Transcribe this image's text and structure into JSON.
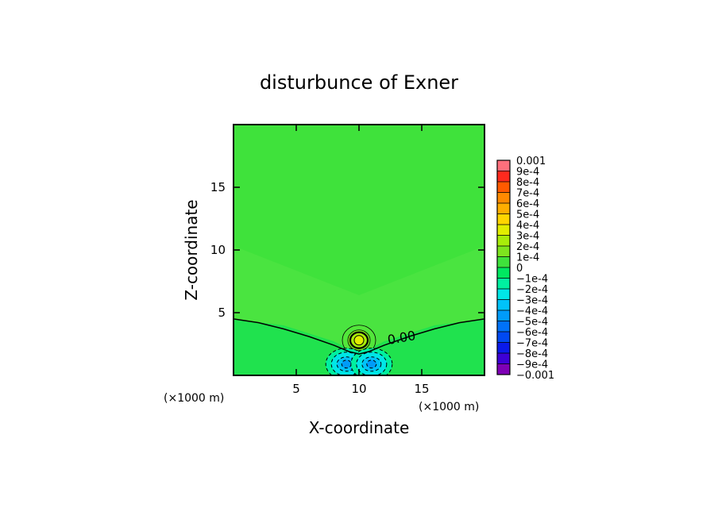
{
  "chart_data": {
    "type": "heatmap",
    "title": "disturbunce of Exner",
    "xlabel": "X-coordinate",
    "ylabel": "Z-coordinate",
    "x_unit_label": "(×1000 m)",
    "y_unit_label": "(×1000 m)",
    "xlim": [
      0,
      20
    ],
    "ylim": [
      0,
      20
    ],
    "x_ticks": [
      5,
      10,
      15
    ],
    "y_ticks": [
      5,
      10,
      15
    ],
    "grid": false,
    "legend_position": "right",
    "contour_label": "0.00",
    "zero_contour": [
      [
        0,
        4.5
      ],
      [
        2,
        4.2
      ],
      [
        4,
        3.7
      ],
      [
        6,
        3.1
      ],
      [
        8,
        2.4
      ],
      [
        9.2,
        1.9
      ],
      [
        10,
        1.7
      ],
      [
        10.8,
        1.9
      ],
      [
        12,
        2.4
      ],
      [
        14,
        3.1
      ],
      [
        16,
        3.7
      ],
      [
        18,
        4.2
      ],
      [
        20,
        4.5
      ]
    ],
    "features": [
      {
        "kind": "positive-maximum",
        "x": 10,
        "z": 2.8,
        "value": 0.0003
      },
      {
        "kind": "negative-minimum",
        "x": 9,
        "z": 0.9,
        "value": -0.0004
      },
      {
        "kind": "negative-minimum",
        "x": 11,
        "z": 0.9,
        "value": -0.0004
      }
    ],
    "background_value": 5e-05,
    "colorbar": {
      "levels": [
        "-0.001",
        "-9e-4",
        "-8e-4",
        "-7e-4",
        "-6e-4",
        "-5e-4",
        "-4e-4",
        "-3e-4",
        "-2e-4",
        "-1e-4",
        "0",
        "1e-4",
        "2e-4",
        "3e-4",
        "4e-4",
        "5e-4",
        "6e-4",
        "7e-4",
        "8e-4",
        "9e-4",
        "0.001"
      ],
      "colors": [
        "#7e00b5",
        "#3d00d6",
        "#0a1aea",
        "#0049f2",
        "#0072f8",
        "#009bf9",
        "#00c3f9",
        "#00e6e6",
        "#00f0a0",
        "#00e860",
        "#3fe23b",
        "#7ee41e",
        "#a8ec0a",
        "#e2ee00",
        "#ffd500",
        "#ffae00",
        "#ff8a00",
        "#ff5a00",
        "#ff2a1e",
        "#ff6f7c"
      ]
    }
  }
}
